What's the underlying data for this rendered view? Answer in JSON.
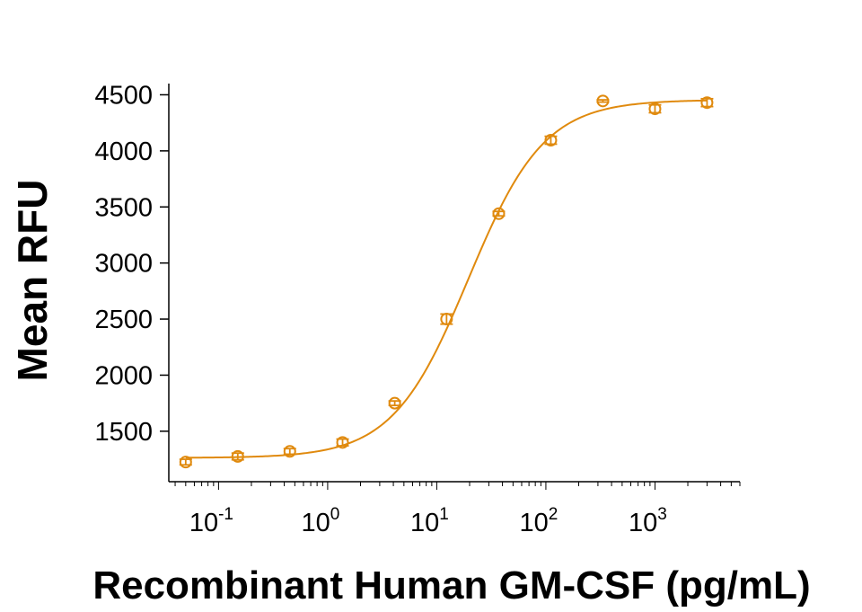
{
  "chart_data": {
    "type": "scatter",
    "title": "",
    "xlabel": "Recombinant Human GM-CSF (pg/mL)",
    "ylabel": "Mean RFU",
    "x_scale": "log",
    "xlim": [
      0.035,
      6000
    ],
    "ylim": [
      1050,
      4600
    ],
    "x_ticks": [
      {
        "value": 0.1,
        "base": "10",
        "exp": "-1"
      },
      {
        "value": 1,
        "base": "10",
        "exp": "0"
      },
      {
        "value": 10,
        "base": "10",
        "exp": "1"
      },
      {
        "value": 100,
        "base": "10",
        "exp": "2"
      },
      {
        "value": 1000,
        "base": "10",
        "exp": "3"
      }
    ],
    "y_ticks": [
      1500,
      2000,
      2500,
      3000,
      3500,
      4000,
      4500
    ],
    "color": "#E08A0E",
    "grid": false,
    "legend": "none",
    "series": [
      {
        "marker": "open-circle",
        "x": [
          0.05,
          0.15,
          0.45,
          1.37,
          4.12,
          12.3,
          37,
          111,
          333,
          1000,
          3000
        ],
        "y": [
          1225,
          1275,
          1320,
          1400,
          1750,
          2500,
          3440,
          4095,
          4445,
          4375,
          4430
        ],
        "error": [
          25,
          30,
          25,
          30,
          20,
          45,
          20,
          35,
          10,
          35,
          35
        ]
      }
    ],
    "fit_curve": {
      "model": "4PL",
      "bottom": 1262,
      "top": 4455,
      "ec50": 19.5,
      "hill": 1.25
    }
  }
}
